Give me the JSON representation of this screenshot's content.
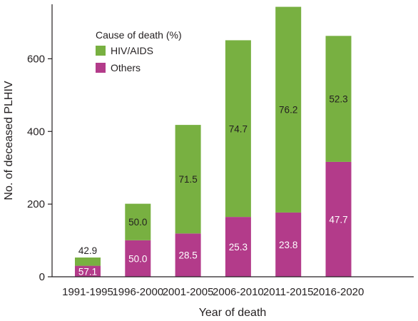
{
  "chart_data": {
    "type": "bar",
    "stacked": true,
    "xlabel": "Year of death",
    "ylabel": "No. of deceased PLHIV",
    "ylim": [
      0,
      750
    ],
    "yticks": [
      0,
      200,
      400,
      600
    ],
    "categories": [
      "1991-1995",
      "1996-2000",
      "2001-2005",
      "2006-2010",
      "2011-2015",
      "2016-2020"
    ],
    "totals": [
      53,
      201,
      418,
      651,
      743,
      663
    ],
    "legend": {
      "title": "Cause of death (%)",
      "placement": "top-left"
    },
    "series": [
      {
        "name": "Others",
        "color": "#b33b8a",
        "percent_labels": [
          "57.1",
          "50.0",
          "28.5",
          "25.3",
          "23.8",
          "47.7"
        ]
      },
      {
        "name": "HIV/AIDS",
        "color": "#78b041",
        "percent_labels": [
          "42.9",
          "50.0",
          "71.5",
          "74.7",
          "76.2",
          "52.3"
        ]
      }
    ]
  }
}
